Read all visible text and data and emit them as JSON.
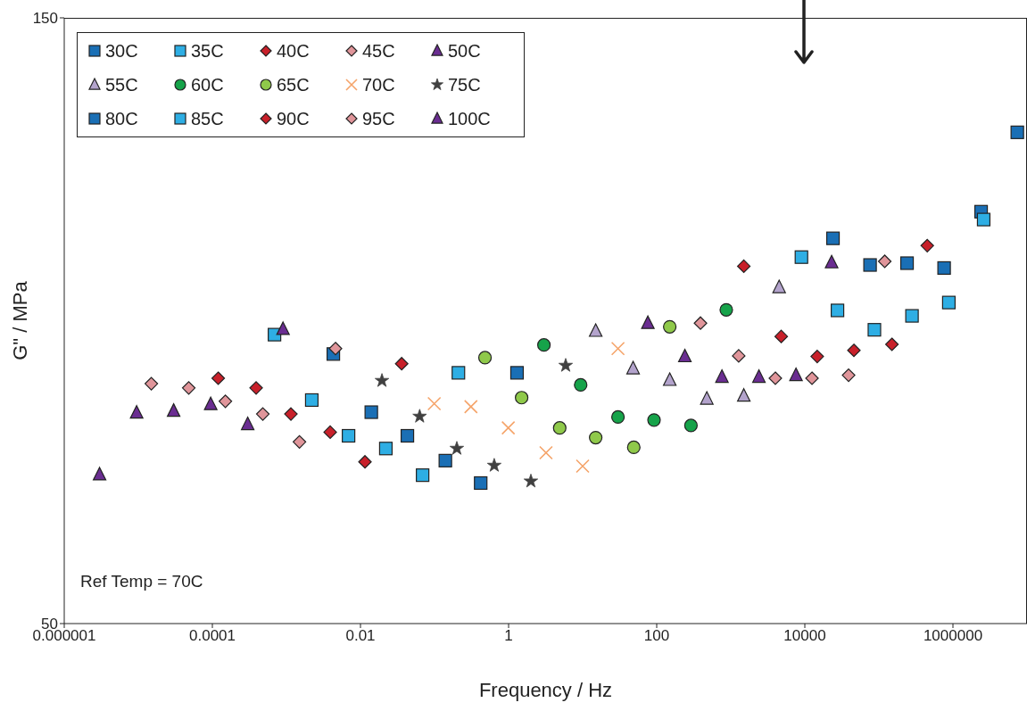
{
  "chart_data": {
    "type": "scatter",
    "xlabel": "Frequency / Hz",
    "ylabel": "G\" / MPa",
    "log": "x",
    "xlim": [
      1e-06,
      10000000
    ],
    "xticks": [
      {
        "value": 1e-06,
        "label": "0.000001"
      },
      0.0001,
      0.01,
      1,
      100,
      10000,
      1000000
    ],
    "ylim": [
      50,
      150
    ],
    "yticks": [
      50,
      150
    ],
    "legend": "top left",
    "annotations": [
      "Ref Temp = 70C"
    ],
    "series": [
      {
        "name": "30C",
        "color": "#1a6fb5",
        "marker": "square",
        "x": [
          24000,
          76000,
          240000,
          760000,
          2400000,
          7400000
        ],
        "values": [
          113.6,
          109.2,
          109.5,
          108.7,
          118,
          131.1
        ]
      },
      {
        "name": "35C",
        "color": "#2eaee4",
        "marker": "square",
        "x": [
          9000,
          27600,
          87000,
          280000,
          880000,
          2600000
        ],
        "values": [
          110.5,
          101.7,
          98.5,
          100.8,
          103,
          116.7
        ]
      },
      {
        "name": "40C",
        "color": "#c8202a",
        "marker": "diamond",
        "x": [
          1500,
          4800,
          14700,
          46000,
          150000,
          450000
        ],
        "values": [
          109,
          97.4,
          94.1,
          95.1,
          96.1,
          112.4
        ]
      },
      {
        "name": "45C",
        "color": "#e0959a",
        "marker": "diamond",
        "x": [
          390,
          1280,
          4000,
          12500,
          39000,
          120000
        ],
        "values": [
          99.6,
          94.2,
          90.5,
          90.5,
          91,
          109.8
        ]
      },
      {
        "name": "50C",
        "color": "#6a2d91",
        "marker": "triangle",
        "x": [
          76,
          240,
          760,
          2400,
          7600,
          23000
        ],
        "values": [
          99.6,
          94.1,
          90.7,
          90.7,
          91,
          109.6
        ]
      },
      {
        "name": "55C",
        "color": "#b3a3cc",
        "marker": "triangle",
        "x": [
          15,
          48,
          150,
          475,
          1500,
          4500
        ],
        "values": [
          98.3,
          92.1,
          90.2,
          87.1,
          87.6,
          105.5
        ]
      },
      {
        "name": "60C",
        "color": "#16a34a",
        "marker": "circle",
        "x": [
          3,
          9.4,
          30,
          92,
          290,
          870
        ],
        "values": [
          96,
          89.4,
          84.1,
          83.6,
          82.7,
          101.8
        ]
      },
      {
        "name": "65C",
        "color": "#8fc94a",
        "marker": "circle",
        "x": [
          0.48,
          1.5,
          4.9,
          15,
          49,
          150
        ],
        "values": [
          93.9,
          87.3,
          82.3,
          80.7,
          79.1,
          99
        ]
      },
      {
        "name": "70C",
        "color": "#f5a46a",
        "marker": "cross",
        "x": [
          0.099,
          0.31,
          0.99,
          3.2,
          10,
          30
        ],
        "values": [
          86.3,
          85.8,
          82.3,
          78.2,
          76,
          95.4
        ]
      },
      {
        "name": "75C",
        "color": "#404040",
        "marker": "star",
        "x": [
          0.0195,
          0.063,
          0.2,
          0.64,
          2,
          5.9
        ],
        "values": [
          90.1,
          84.2,
          78.9,
          76.1,
          73.5,
          92.6
        ]
      },
      {
        "name": "80C",
        "color": "#1a6fb5",
        "marker": "square",
        "x": [
          0.0043,
          0.014,
          0.043,
          0.14,
          0.42,
          1.3
        ],
        "values": [
          94.5,
          84.9,
          81,
          76.9,
          73.2,
          91.4
        ]
      },
      {
        "name": "85C",
        "color": "#2eaee4",
        "marker": "square",
        "x": [
          0.00069,
          0.0022,
          0.0069,
          0.022,
          0.069,
          0.21
        ],
        "values": [
          97.7,
          86.9,
          81,
          78.9,
          74.5,
          91.4
        ]
      },
      {
        "name": "90C",
        "color": "#c8202a",
        "marker": "diamond",
        "x": [
          0.00012,
          0.00039,
          0.00115,
          0.0039,
          0.0115,
          0.036
        ],
        "values": [
          90.5,
          88.9,
          84.6,
          81.6,
          76.7,
          92.9
        ]
      },
      {
        "name": "95C",
        "color": "#e0959a",
        "marker": "diamond",
        "x": [
          1.5e-05,
          4.8e-05,
          0.00015,
          0.00048,
          0.0015,
          0.0046
        ],
        "values": [
          89.6,
          88.9,
          86.7,
          84.6,
          80,
          95.4
        ]
      },
      {
        "name": "100C",
        "color": "#6a2d91",
        "marker": "triangle",
        "x": [
          3e-06,
          9.5e-06,
          3e-05,
          9.5e-05,
          0.0003,
          0.0009
        ],
        "values": [
          74.6,
          84.8,
          85.1,
          86.2,
          82.9,
          98.6
        ]
      }
    ]
  }
}
